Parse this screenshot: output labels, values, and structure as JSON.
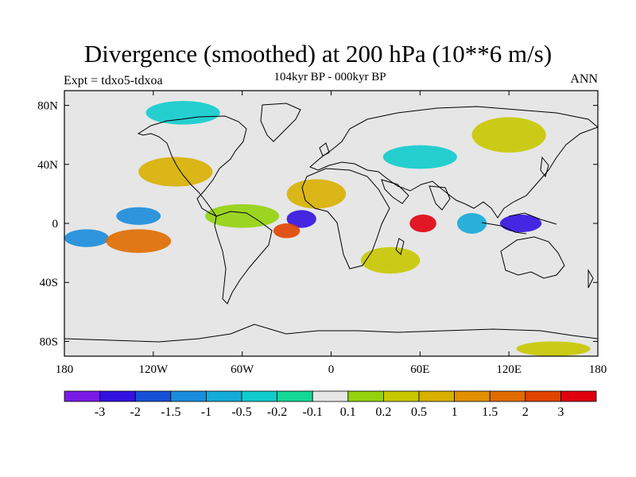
{
  "title": "Divergence (smoothed) at 200 hPa (10**6 m/s)",
  "subtitle": "104kyr BP - 000kyr BP",
  "experiment": "Expt = tdxo5-tdxoa",
  "season": "ANN",
  "map": {
    "projection": "cylindrical-equidistant",
    "lon_range": [
      -180,
      180
    ],
    "lat_range": [
      -90,
      90
    ],
    "x_ticks": [
      {
        "value": -180,
        "label": "180"
      },
      {
        "value": -120,
        "label": "120W"
      },
      {
        "value": -60,
        "label": "60W"
      },
      {
        "value": 0,
        "label": "0"
      },
      {
        "value": 60,
        "label": "60E"
      },
      {
        "value": 120,
        "label": "120E"
      },
      {
        "value": 180,
        "label": "180"
      }
    ],
    "y_ticks": [
      {
        "value": 80,
        "label": "80N"
      },
      {
        "value": 40,
        "label": "40N"
      },
      {
        "value": 0,
        "label": "0"
      },
      {
        "value": -40,
        "label": "40S"
      },
      {
        "value": -80,
        "label": "80S"
      }
    ],
    "background_color": "#e6e6e6",
    "features": [
      {
        "lon": -60,
        "lat": 5,
        "r_lon": 25,
        "r_lat": 8,
        "level": 8
      },
      {
        "lon": -20,
        "lat": 3,
        "r_lon": 10,
        "r_lat": 6,
        "level": 1
      },
      {
        "lon": -30,
        "lat": -5,
        "r_lon": 9,
        "r_lat": 5,
        "level": 13
      },
      {
        "lon": 62,
        "lat": 0,
        "r_lon": 9,
        "r_lat": 6,
        "level": 14
      },
      {
        "lon": 128,
        "lat": 0,
        "r_lon": 14,
        "r_lat": 6,
        "level": 1
      },
      {
        "lon": 95,
        "lat": 0,
        "r_lon": 10,
        "r_lat": 7,
        "level": 4
      },
      {
        "lon": -130,
        "lat": 5,
        "r_lon": 15,
        "r_lat": 6,
        "level": 3
      },
      {
        "lon": -165,
        "lat": -10,
        "r_lon": 15,
        "r_lat": 6,
        "level": 3
      },
      {
        "lon": -130,
        "lat": -12,
        "r_lon": 22,
        "r_lat": 8,
        "level": 12
      },
      {
        "lon": -105,
        "lat": 35,
        "r_lon": 25,
        "r_lat": 10,
        "level": 10
      },
      {
        "lon": -10,
        "lat": 20,
        "r_lon": 20,
        "r_lat": 10,
        "level": 10
      },
      {
        "lon": 40,
        "lat": -25,
        "r_lon": 20,
        "r_lat": 9,
        "level": 9
      },
      {
        "lon": 120,
        "lat": 60,
        "r_lon": 25,
        "r_lat": 12,
        "level": 9
      },
      {
        "lon": -100,
        "lat": 75,
        "r_lon": 25,
        "r_lat": 8,
        "level": 5
      },
      {
        "lon": 60,
        "lat": 45,
        "r_lon": 25,
        "r_lat": 8,
        "level": 5
      },
      {
        "lon": 150,
        "lat": -85,
        "r_lon": 25,
        "r_lat": 5,
        "level": 9
      }
    ]
  },
  "colorbar": {
    "colors": [
      "#7a1ae6",
      "#3311e0",
      "#1550d6",
      "#1a8cdc",
      "#14abd8",
      "#10cccc",
      "#14d896",
      "#e6e6e6",
      "#94d20c",
      "#c8c800",
      "#d8b000",
      "#e09000",
      "#e06c00",
      "#e04400",
      "#e00010"
    ],
    "labels": [
      "-3",
      "-2",
      "-1.5",
      "-1",
      "-0.5",
      "-0.2",
      "-0.1",
      "0.1",
      "0.2",
      "0.5",
      "1",
      "1.5",
      "2",
      "3"
    ]
  }
}
